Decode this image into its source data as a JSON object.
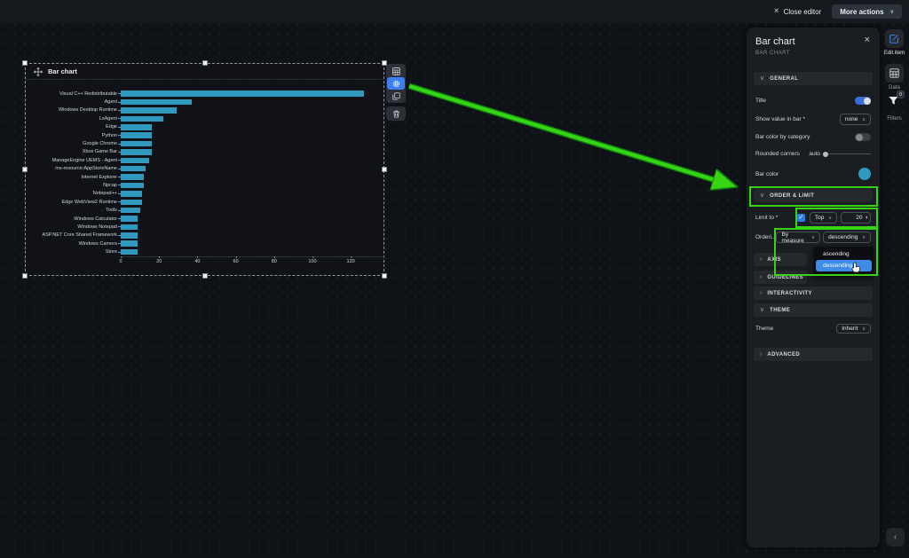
{
  "top_bar": {
    "close_label": "Close editor",
    "close_icon": "×",
    "more_actions_label": "More actions"
  },
  "chart_panel": {
    "title": "Bar chart"
  },
  "chart_data": {
    "type": "bar",
    "orientation": "horizontal",
    "title": "Bar chart",
    "categories": [
      "Visual C++ Redistributable",
      "Agent",
      "Windows Desktop Runtime",
      "LsAgent",
      "Edge",
      "Python",
      "Google Chrome",
      "Xbox Game Bar",
      "ManageEngine UEMS - Agent",
      "ms-resource:AppStoreName",
      "Internet Explorer",
      "Npcap",
      "Notepad++",
      "Edge WebView2 Runtime",
      "Tools",
      "Windows Calculator",
      "Windows Notepad",
      "ASP.NET Core Shared Framework",
      "Windows Camera",
      "Store"
    ],
    "values": [
      127,
      37,
      29,
      22,
      16,
      16,
      16,
      16,
      15,
      13,
      12,
      12,
      11,
      11,
      10,
      9,
      9,
      9,
      9,
      9
    ],
    "xticks": [
      0,
      20,
      40,
      60,
      80,
      100,
      120
    ],
    "xlim": [
      0,
      138
    ],
    "bar_color": "#3199bd",
    "grid": "dotted"
  },
  "float_toolbar": {
    "icons": [
      "table-icon",
      "settings-gear-icon",
      "duplicate-icon",
      "delete-icon"
    ],
    "active": "settings-gear-icon"
  },
  "settings": {
    "title": "Bar chart",
    "subtitle": "BAR CHART",
    "close_icon": "×",
    "sections": {
      "general": "GENERAL",
      "order_limit": "ORDER & LIMIT",
      "axis": "AXIS",
      "guidelines": "GUIDELINES",
      "interactivity": "INTERACTIVITY",
      "theme": "THEME",
      "advanced": "ADVANCED"
    },
    "rows": {
      "title_label": "Title",
      "title_toggle": "on",
      "show_value_label": "Show value in bar *",
      "show_value_value": "none",
      "bar_color_by_category_label": "Bar color by category",
      "bar_color_by_category_toggle": "off",
      "rounded_corners_label": "Rounded corners",
      "rounded_corners_value": "auto",
      "bar_color_label": "Bar color",
      "bar_color": "#31a8c9",
      "limit_label": "Limit to *",
      "limit_checked": true,
      "limit_mode": "Top",
      "limit_value": "20",
      "ordering_label": "Orderi...",
      "ordering_by": "By measure",
      "ordering_dir": "descending",
      "theme_label": "Theme",
      "theme_value": "Inherit"
    },
    "dropdown_menu": {
      "items": [
        "ascending",
        "descending"
      ],
      "selected": "descending"
    }
  },
  "right_rail": {
    "edit_item_label": "Edit item",
    "data_label": "Data",
    "filters_label": "Filters",
    "filters_badge": "0"
  },
  "colors": {
    "accent_blue": "#3d7ff0",
    "toggle_blue": "#3a6fd8",
    "bar_teal": "#3199bd",
    "annotation_green": "#35d415",
    "menu_selected_blue": "#3f8ce8"
  }
}
